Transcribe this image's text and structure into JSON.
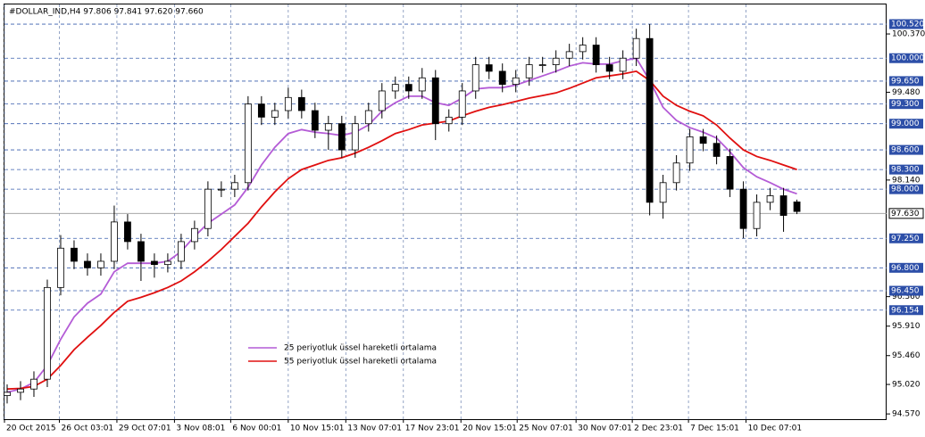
{
  "chart_data": {
    "type": "candlestick",
    "title": "#DOLLAR_IND,H4  97.806 97.841 97.620 97.660",
    "open": [
      94.85,
      94.9,
      94.95,
      95.1,
      96.5,
      97.1,
      96.9,
      96.8,
      96.9,
      97.5,
      97.2,
      96.9,
      96.85,
      96.9,
      97.2,
      97.4,
      98.0,
      98.0,
      98.1,
      99.3,
      99.1,
      99.2,
      99.4,
      99.2,
      98.9,
      99.0,
      98.6,
      99.0,
      99.2,
      99.5,
      99.6,
      99.5,
      99.7,
      99.0,
      99.1,
      99.5,
      99.9,
      99.8,
      99.6,
      99.7,
      99.9,
      99.9,
      100.0,
      100.1,
      100.2,
      99.9,
      99.8,
      100.0,
      100.3,
      97.8,
      98.1,
      98.4,
      98.8,
      98.7,
      98.5,
      98.0,
      97.4,
      97.8,
      97.9,
      97.806
    ],
    "high": [
      95.02,
      95.07,
      95.22,
      96.62,
      97.3,
      97.22,
      97.02,
      97.02,
      97.75,
      97.62,
      97.32,
      97.02,
      97.02,
      97.32,
      97.52,
      98.12,
      98.12,
      98.22,
      99.42,
      99.42,
      99.32,
      99.55,
      99.52,
      99.32,
      99.12,
      99.12,
      99.12,
      99.32,
      99.62,
      99.72,
      99.72,
      99.85,
      99.82,
      99.22,
      99.62,
      100.02,
      100.02,
      99.92,
      99.82,
      100.02,
      100.02,
      100.12,
      100.22,
      100.32,
      100.32,
      100.02,
      100.12,
      100.45,
      100.52,
      98.22,
      98.52,
      98.92,
      98.92,
      98.82,
      98.62,
      98.12,
      97.92,
      98.02,
      98.02,
      97.841
    ],
    "low": [
      94.73,
      94.78,
      94.83,
      94.98,
      96.38,
      96.78,
      96.68,
      96.68,
      96.78,
      97.08,
      96.6,
      96.65,
      96.73,
      96.78,
      97.08,
      97.28,
      97.88,
      97.88,
      97.98,
      98.98,
      98.98,
      99.08,
      99.08,
      98.78,
      98.6,
      98.48,
      98.48,
      98.88,
      99.08,
      99.38,
      99.38,
      99.38,
      98.75,
      98.88,
      98.98,
      99.38,
      99.68,
      99.48,
      99.48,
      99.58,
      99.78,
      99.78,
      99.88,
      99.98,
      99.78,
      99.68,
      99.68,
      99.88,
      97.6,
      97.55,
      97.98,
      98.28,
      98.58,
      98.38,
      97.88,
      97.25,
      97.28,
      97.68,
      97.35,
      97.62
    ],
    "close": [
      94.9,
      94.95,
      95.1,
      96.5,
      97.1,
      96.9,
      96.8,
      96.9,
      97.5,
      97.2,
      96.9,
      96.85,
      96.9,
      97.2,
      97.4,
      98.0,
      98.0,
      98.1,
      99.3,
      99.1,
      99.2,
      99.4,
      99.2,
      98.9,
      99.0,
      98.6,
      99.0,
      99.2,
      99.5,
      99.6,
      99.5,
      99.7,
      99.0,
      99.1,
      99.5,
      99.9,
      99.8,
      99.6,
      99.7,
      99.9,
      99.9,
      100.0,
      100.1,
      100.2,
      99.9,
      99.8,
      100.0,
      100.3,
      97.8,
      98.1,
      98.4,
      98.8,
      98.7,
      98.5,
      98.0,
      97.4,
      97.8,
      97.9,
      97.6,
      97.66
    ],
    "series": [
      {
        "name": "25 periyotluk üssel hareketli ortalama",
        "color": "#b45cd6",
        "values": [
          94.9,
          94.95,
          95.05,
          95.31,
          95.71,
          96.05,
          96.26,
          96.4,
          96.74,
          96.87,
          96.87,
          96.87,
          96.9,
          97.05,
          97.28,
          97.48,
          97.62,
          97.76,
          98.03,
          98.37,
          98.64,
          98.85,
          98.91,
          98.87,
          98.85,
          98.82,
          98.87,
          98.98,
          99.19,
          99.32,
          99.42,
          99.42,
          99.32,
          99.28,
          99.39,
          99.53,
          99.55,
          99.55,
          99.59,
          99.66,
          99.73,
          99.8,
          99.88,
          99.93,
          99.91,
          99.91,
          99.96,
          100.0,
          99.66,
          99.25,
          99.05,
          98.94,
          98.87,
          98.78,
          98.57,
          98.33,
          98.19,
          98.1,
          98.0,
          97.93
        ]
      },
      {
        "name": "55 periyotluk üssel hareketli ortalama",
        "color": "#e01010",
        "values": [
          94.95,
          94.96,
          94.99,
          95.1,
          95.31,
          95.55,
          95.74,
          95.92,
          96.12,
          96.29,
          96.35,
          96.42,
          96.5,
          96.6,
          96.74,
          96.9,
          97.08,
          97.28,
          97.48,
          97.73,
          97.96,
          98.16,
          98.3,
          98.37,
          98.44,
          98.48,
          98.55,
          98.64,
          98.74,
          98.85,
          98.91,
          98.98,
          99.01,
          99.04,
          99.12,
          99.19,
          99.25,
          99.29,
          99.34,
          99.39,
          99.43,
          99.47,
          99.54,
          99.62,
          99.7,
          99.73,
          99.76,
          99.8,
          99.66,
          99.42,
          99.28,
          99.19,
          99.12,
          98.98,
          98.78,
          98.6,
          98.5,
          98.44,
          98.37,
          98.3
        ]
      }
    ],
    "xlim": [
      -0.2,
      65.7
    ],
    "xticks": [
      {
        "value": -0.2,
        "label": "20 Oct 2015"
      },
      {
        "value": 3.9,
        "label": "26 Oct 03:01"
      },
      {
        "value": 8.2,
        "label": "29 Oct 07:01"
      },
      {
        "value": 12.5,
        "label": "3 Nov 08:01"
      },
      {
        "value": 16.7,
        "label": "6 Nov 00:01"
      },
      {
        "value": 21,
        "label": "10 Nov 15:01"
      },
      {
        "value": 25.3,
        "label": "13 Nov 07:01"
      },
      {
        "value": 29.6,
        "label": "17 Nov 23:01"
      },
      {
        "value": 33.9,
        "label": "20 Nov 15:01"
      },
      {
        "value": 38.1,
        "label": "25 Nov 07:01"
      },
      {
        "value": 42.5,
        "label": "30 Nov 07:01"
      },
      {
        "value": 46.7,
        "label": "2 Dec 23:01"
      },
      {
        "value": 50.9,
        "label": "7 Dec 15:01"
      },
      {
        "value": 55.2,
        "label": "10 Dec 07:01"
      }
    ],
    "ylim": [
      94.49,
      100.82
    ],
    "yticks": [
      {
        "value": 100.37,
        "label": "100.370"
      },
      {
        "value": 99.48,
        "label": "99.480"
      },
      {
        "value": 98.14,
        "label": "98.140"
      },
      {
        "value": 96.36,
        "label": "96.360"
      },
      {
        "value": 95.91,
        "label": "95.910"
      },
      {
        "value": 95.46,
        "label": "95.460"
      },
      {
        "value": 95.02,
        "label": "95.020"
      },
      {
        "value": 94.57,
        "label": "94.570"
      }
    ],
    "levels": [
      {
        "value": 100.52,
        "label": "100.520"
      },
      {
        "value": 100.0,
        "label": "100.000"
      },
      {
        "value": 99.65,
        "label": "99.650"
      },
      {
        "value": 99.3,
        "label": "99.300"
      },
      {
        "value": 99.0,
        "label": "99.000"
      },
      {
        "value": 98.6,
        "label": "98.600"
      },
      {
        "value": 98.3,
        "label": "98.300"
      },
      {
        "value": 98.0,
        "label": "98.000"
      },
      {
        "value": 97.25,
        "label": "97.250"
      },
      {
        "value": 96.8,
        "label": "96.800"
      },
      {
        "value": 96.45,
        "label": "96.450"
      },
      96.154
    ],
    "current": {
      "value": 97.63,
      "label": "97.630"
    },
    "grid": true
  }
}
